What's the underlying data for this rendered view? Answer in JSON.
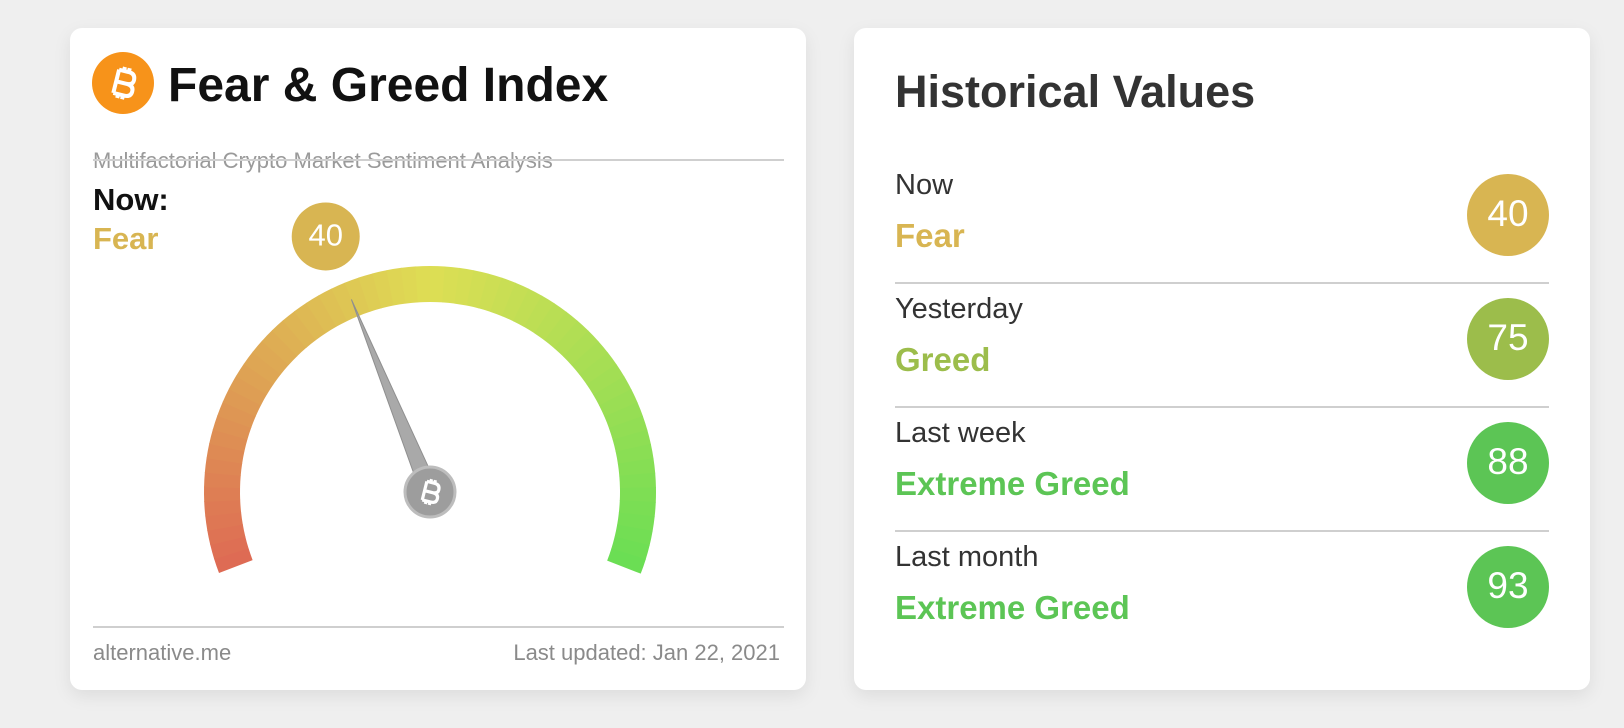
{
  "fear_greed": {
    "title": "Fear & Greed Index",
    "subtitle": "Multifactorial Crypto Market Sentiment Analysis",
    "now_label": "Now:",
    "classification": "Fear",
    "value": 40,
    "color": "#d8b552",
    "range": [
      0,
      100
    ],
    "source": "alternative.me",
    "last_updated": "Last updated: Jan 22, 2021"
  },
  "historical": {
    "title": "Historical Values",
    "rows": [
      {
        "period": "Now",
        "classification": "Fear",
        "value": 40,
        "color": "#d8b552"
      },
      {
        "period": "Yesterday",
        "classification": "Greed",
        "value": 75,
        "color": "#9cbd4b"
      },
      {
        "period": "Last week",
        "classification": "Extreme Greed",
        "value": 88,
        "color": "#5cc555"
      },
      {
        "period": "Last month",
        "classification": "Extreme Greed",
        "value": 93,
        "color": "#5cc555"
      }
    ]
  }
}
